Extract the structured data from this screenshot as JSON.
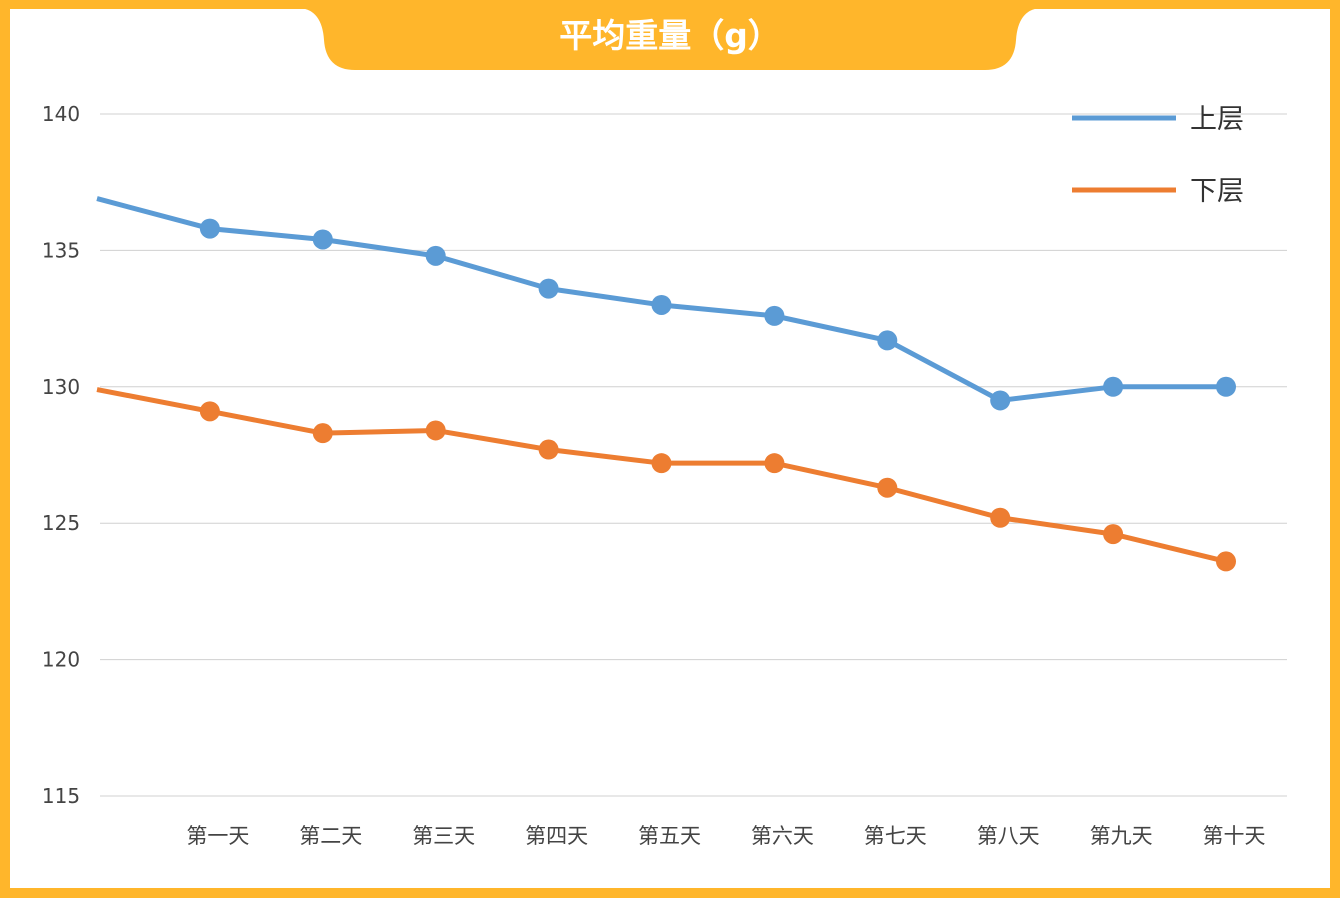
{
  "chart_data": {
    "type": "line",
    "title": "平均重量（g）",
    "categories": [
      "",
      "第一天",
      "第二天",
      "第三天",
      "第四天",
      "第五天",
      "第六天",
      "第七天",
      "第八天",
      "第九天",
      "第十天"
    ],
    "ylim": [
      115,
      140
    ],
    "yticks": [
      115,
      120,
      125,
      130,
      135,
      140
    ],
    "grid": true,
    "legend_position": "top-right",
    "series": [
      {
        "name": "上层",
        "color": "#5B9BD5",
        "values": [
          136.9,
          135.8,
          135.4,
          134.8,
          133.6,
          133.0,
          132.6,
          131.7,
          129.5,
          130.0,
          130.0
        ]
      },
      {
        "name": "下层",
        "color": "#ED7D31",
        "values": [
          129.9,
          129.1,
          128.3,
          128.4,
          127.7,
          127.2,
          127.2,
          126.3,
          125.2,
          124.6,
          123.6
        ]
      }
    ]
  },
  "frame_color": "#FFB62B"
}
